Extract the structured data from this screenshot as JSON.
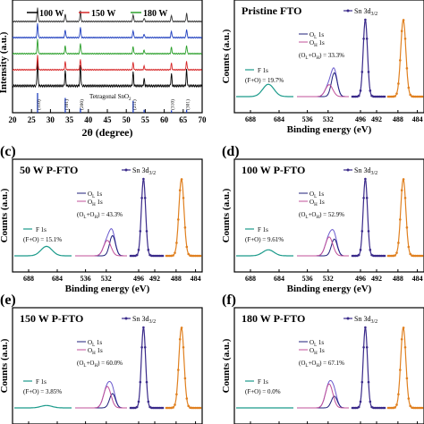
{
  "panel_a": {
    "xlabel": "2θ (degree)",
    "ylabel": "Intensity (a.u.)",
    "xticks": [
      "20",
      "25",
      "30",
      "35",
      "40",
      "45",
      "50",
      "55",
      "60",
      "65",
      "70"
    ],
    "legend": [
      "100 W",
      "150 W",
      "180 W"
    ],
    "ref_label": "Tetragonal SnO",
    "ref_sub": "2",
    "peak_labels": [
      "(110)",
      "(101)",
      "(200)",
      "(211)",
      "(310)",
      "(301)"
    ],
    "colors": [
      "#000000",
      "#d62728",
      "#2ca02c",
      "#1f3fbf",
      "#333333"
    ]
  },
  "panel_b": {
    "title": "Pristine FTO",
    "ratio_F": "19.7%",
    "ratio_O": "33.3%"
  },
  "panel_c": {
    "letter": "(c)",
    "title": "50 W  P-FTO",
    "ratio_F": "15.1%",
    "ratio_O": "43.3%"
  },
  "panel_d": {
    "letter": "(d)",
    "title": "100 W  P-FTO",
    "ratio_F": "9.61%",
    "ratio_O": "52.9%"
  },
  "panel_e": {
    "letter": "(e)",
    "title": "150 W  P-FTO",
    "ratio_F": "3.85%",
    "ratio_O": "60.0%"
  },
  "panel_f": {
    "letter": "(f)",
    "title": "180 W  P-FTO",
    "ratio_F": "0.0%",
    "ratio_O": "67.1%"
  },
  "xps_common": {
    "ylabel": "Counts (a.u.)",
    "xlabel": "Binding  energy (eV)",
    "F_label": "F 1s",
    "OL_label": "O",
    "OL_sub": "L",
    "OH_label": "O",
    "OH_sub": "H",
    "s1": "1s",
    "Sn_label": "Sn 3d",
    "Sn_sub": "3/2",
    "ticks": [
      "688",
      "684",
      "536",
      "532",
      "496",
      "492",
      "488",
      "484"
    ],
    "colors": {
      "F": "#1a9a8a",
      "O_total": "#6a5acd",
      "O_L": "#1f1f7a",
      "O_H": "#c0509a",
      "Sn_left": "#3a2a8a",
      "Sn_right": "#e08020"
    }
  },
  "chart_data": [
    {
      "type": "line",
      "panel": "a",
      "title": "",
      "xlabel": "2θ (degree)",
      "ylabel": "Intensity (a.u.)",
      "xlim": [
        20,
        70
      ],
      "series": [
        {
          "name": "100 W"
        },
        {
          "name": "150 W"
        },
        {
          "name": "180 W"
        }
      ],
      "reference": {
        "label": "Tetragonal SnO2",
        "peaks": [
          {
            "x": 26.6,
            "label": "(110)"
          },
          {
            "x": 33.9,
            "label": "(101)"
          },
          {
            "x": 37.9,
            "label": "(200)"
          },
          {
            "x": 51.8,
            "label": "(211)"
          },
          {
            "x": 61.9,
            "label": "(310)"
          },
          {
            "x": 65.9,
            "label": "(301)"
          }
        ]
      }
    },
    {
      "type": "line",
      "panel": "b",
      "title": "Pristine FTO",
      "F_ratio": "19.7%",
      "O_ratio": "33.3%"
    },
    {
      "type": "line",
      "panel": "c",
      "title": "50 W  P-FTO",
      "F_ratio": "15.1%",
      "O_ratio": "43.3%"
    },
    {
      "type": "line",
      "panel": "d",
      "title": "100 W  P-FTO",
      "F_ratio": "9.61%",
      "O_ratio": "52.9%"
    },
    {
      "type": "line",
      "panel": "e",
      "title": "150 W  P-FTO",
      "F_ratio": "3.85%",
      "O_ratio": "60.0%"
    },
    {
      "type": "line",
      "panel": "f",
      "title": "180 W  P-FTO",
      "F_ratio": "0.0%",
      "O_ratio": "67.1%"
    }
  ]
}
